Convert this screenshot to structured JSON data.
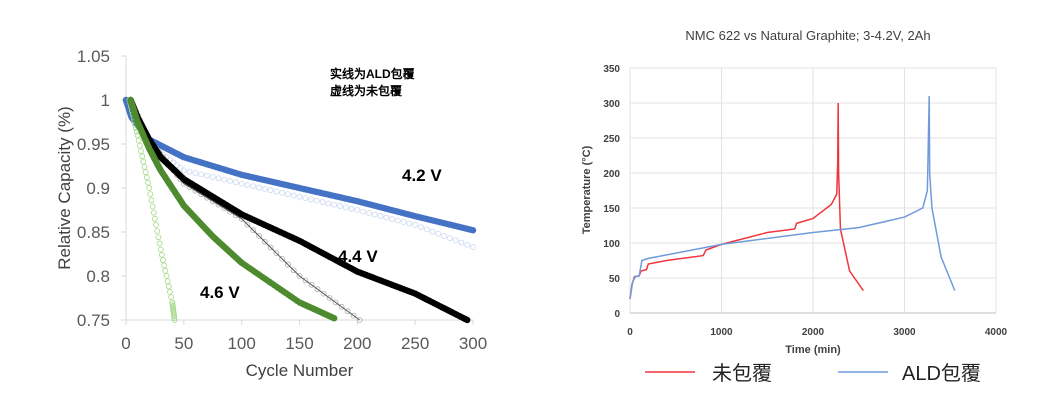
{
  "chart_data": [
    {
      "type": "scatter",
      "title": "",
      "xlabel": "Cycle Number",
      "ylabel": "Relative Capacity (%)",
      "xlim": [
        0,
        300
      ],
      "ylim": [
        0.75,
        1.05
      ],
      "xticks": [
        "0",
        "50",
        "100",
        "150",
        "200",
        "250",
        "300"
      ],
      "yticks": [
        "0.75",
        "0.8",
        "0.85",
        "0.9",
        "0.95",
        "1",
        "1.05"
      ],
      "annotations": {
        "note_line1": "实线为ALD包覆",
        "note_line2": "虚线为未包覆",
        "v42": "4.2 V",
        "v44": "4.4 V",
        "v46": "4.6 V"
      },
      "series": [
        {
          "name": "4.2V uncoated",
          "style": "open",
          "color": "#c9d8f2",
          "x": [
            0,
            20,
            50,
            100,
            150,
            200,
            250,
            300
          ],
          "y": [
            1,
            0.95,
            0.92,
            0.905,
            0.89,
            0.875,
            0.858,
            0.833
          ]
        },
        {
          "name": "4.2V ALD",
          "style": "solid",
          "color": "#4472c4",
          "x": [
            0,
            5,
            20,
            50,
            100,
            150,
            200,
            250,
            300
          ],
          "y": [
            1,
            0.98,
            0.955,
            0.935,
            0.915,
            0.9,
            0.885,
            0.868,
            0.852
          ]
        },
        {
          "name": "4.4V uncoated",
          "style": "open",
          "color": "#b0b0b0",
          "x": [
            4,
            20,
            50,
            100,
            150,
            202
          ],
          "y": [
            1,
            0.955,
            0.905,
            0.865,
            0.8,
            0.75
          ]
        },
        {
          "name": "4.4V ALD",
          "style": "solid",
          "color": "#000000",
          "x": [
            4,
            10,
            20,
            30,
            50,
            75,
            100,
            150,
            200,
            250,
            295
          ],
          "y": [
            1,
            0.98,
            0.955,
            0.935,
            0.91,
            0.89,
            0.87,
            0.84,
            0.805,
            0.78,
            0.75
          ]
        },
        {
          "name": "4.6V uncoated",
          "style": "open",
          "color": "#a6d98a",
          "x": [
            3,
            10,
            20,
            30,
            40,
            42
          ],
          "y": [
            1,
            0.96,
            0.9,
            0.83,
            0.77,
            0.75
          ]
        },
        {
          "name": "4.6V ALD",
          "style": "solid",
          "color": "#4e8a2e",
          "x": [
            4,
            10,
            20,
            30,
            50,
            75,
            100,
            150,
            180
          ],
          "y": [
            1,
            0.975,
            0.945,
            0.92,
            0.88,
            0.845,
            0.815,
            0.77,
            0.752
          ]
        }
      ]
    },
    {
      "type": "line",
      "title": "NMC 622 vs Natural Graphite; 3-4.2V, 2Ah",
      "xlabel": "Time (min)",
      "ylabel": "Temperature (°C)",
      "xlim": [
        0,
        4000
      ],
      "ylim": [
        0,
        350
      ],
      "grid": true,
      "legend": "bottom",
      "xticks": [
        "0",
        "1000",
        "2000",
        "3000",
        "4000"
      ],
      "yticks": [
        "0",
        "50",
        "100",
        "150",
        "200",
        "250",
        "300",
        "350"
      ],
      "series": [
        {
          "name": "未包覆",
          "color": "#f0353d",
          "x": [
            0,
            20,
            50,
            100,
            120,
            180,
            200,
            400,
            800,
            830,
            1000,
            1500,
            1800,
            1820,
            2000,
            2200,
            2260,
            2270,
            2275,
            2280,
            2300,
            2400,
            2550
          ],
          "y": [
            20,
            40,
            52,
            53,
            60,
            62,
            70,
            75,
            82,
            90,
            98,
            115,
            120,
            128,
            135,
            155,
            170,
            215,
            300,
            200,
            120,
            60,
            32
          ]
        },
        {
          "name": "ALD包覆",
          "color": "#6f9bdc",
          "x": [
            0,
            30,
            60,
            100,
            130,
            200,
            1000,
            2000,
            2500,
            3000,
            3200,
            3250,
            3270,
            3275,
            3300,
            3400,
            3550
          ],
          "y": [
            20,
            45,
            52,
            53,
            75,
            78,
            98,
            115,
            122,
            137,
            150,
            175,
            310,
            200,
            150,
            80,
            32
          ]
        }
      ]
    }
  ]
}
